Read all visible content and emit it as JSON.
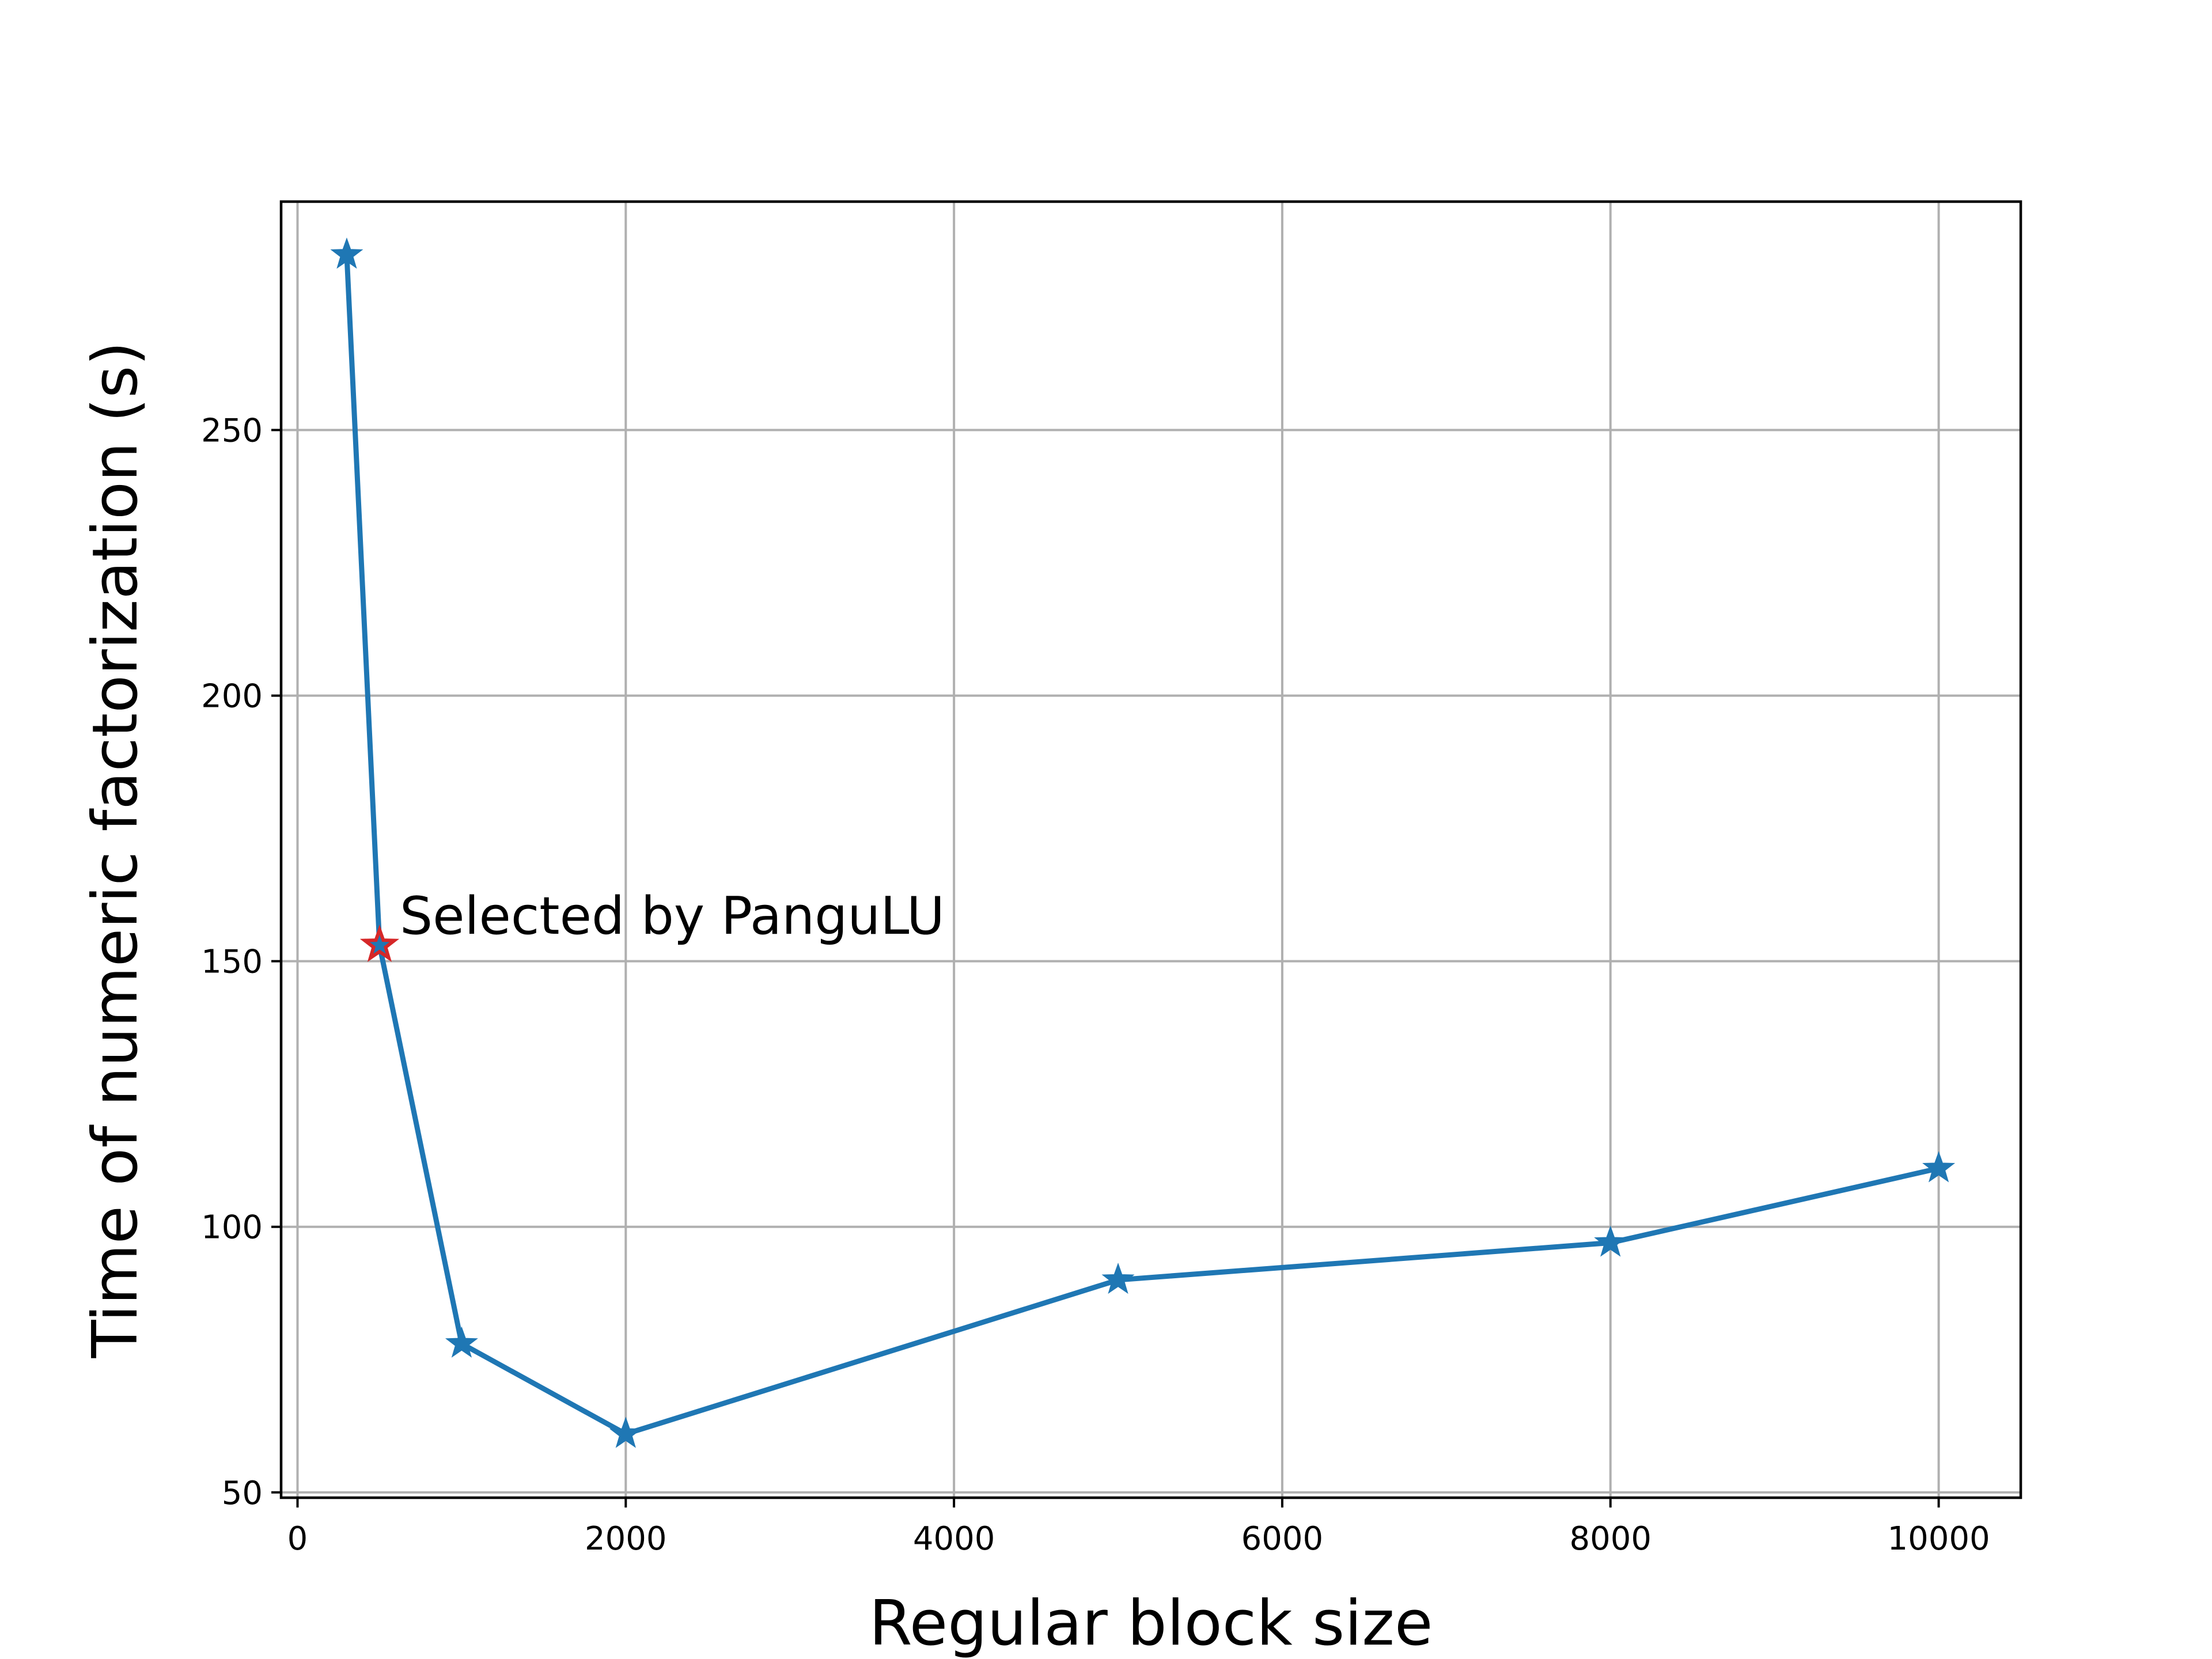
{
  "chart_data": {
    "type": "line",
    "title": "",
    "xlabel": "Regular block size",
    "ylabel": "Time of numeric factorization (s)",
    "xlim": [
      -100,
      10500
    ],
    "ylim": [
      49,
      293
    ],
    "xticks": [
      0,
      2000,
      4000,
      6000,
      8000,
      10000
    ],
    "yticks": [
      50,
      100,
      150,
      200,
      250
    ],
    "grid": true,
    "line_color": "#1f77b4",
    "marker": "star",
    "series": [
      {
        "x": [
          300,
          500,
          1000,
          2000,
          5000,
          8000,
          10000
        ],
        "y": [
          283,
          153,
          78,
          61,
          90,
          97,
          111
        ]
      }
    ],
    "highlight": {
      "x": 500,
      "y": 153,
      "color": "#d62728",
      "label": "Selected by PanguLU"
    }
  }
}
